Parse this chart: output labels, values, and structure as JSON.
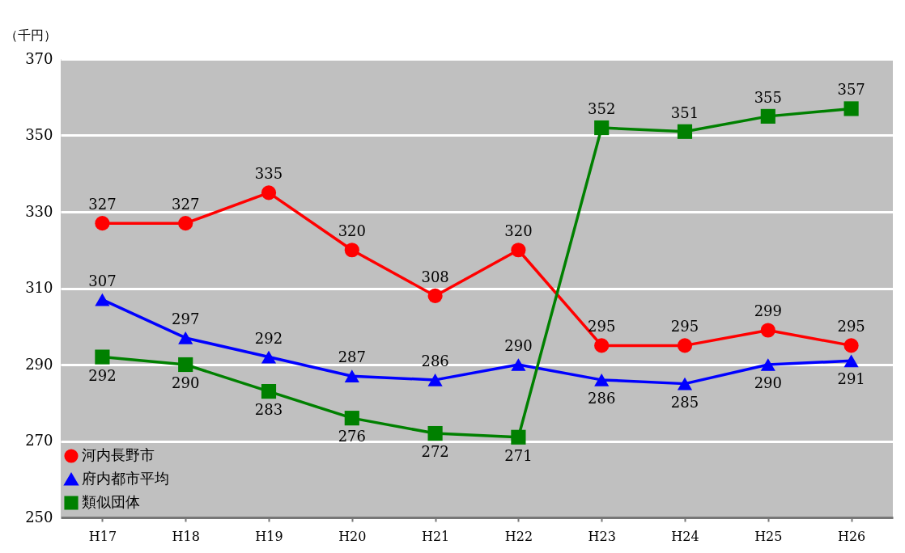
{
  "chart_data": {
    "type": "line",
    "ylabel": "（千円）",
    "categories": [
      "H17",
      "H18",
      "H19",
      "H20",
      "H21",
      "H22",
      "H23",
      "H24",
      "H25",
      "H26"
    ],
    "series": [
      {
        "name": "河内長野市",
        "color": "#ff0000",
        "marker": "circle",
        "values": [
          327,
          327,
          335,
          320,
          308,
          320,
          295,
          295,
          299,
          295
        ]
      },
      {
        "name": "府内都市平均",
        "color": "#0000ff",
        "marker": "triangle",
        "values": [
          307,
          297,
          292,
          287,
          286,
          290,
          286,
          285,
          290,
          291
        ]
      },
      {
        "name": "類似団体",
        "color": "#008000",
        "marker": "square",
        "values": [
          292,
          290,
          283,
          276,
          272,
          271,
          352,
          351,
          355,
          357
        ]
      }
    ],
    "ylim": [
      250,
      370
    ],
    "yticks": [
      250,
      270,
      290,
      310,
      330,
      350,
      370
    ],
    "grid": "y",
    "line_style": "solid",
    "legend": "bottom left",
    "data_labels": true
  }
}
